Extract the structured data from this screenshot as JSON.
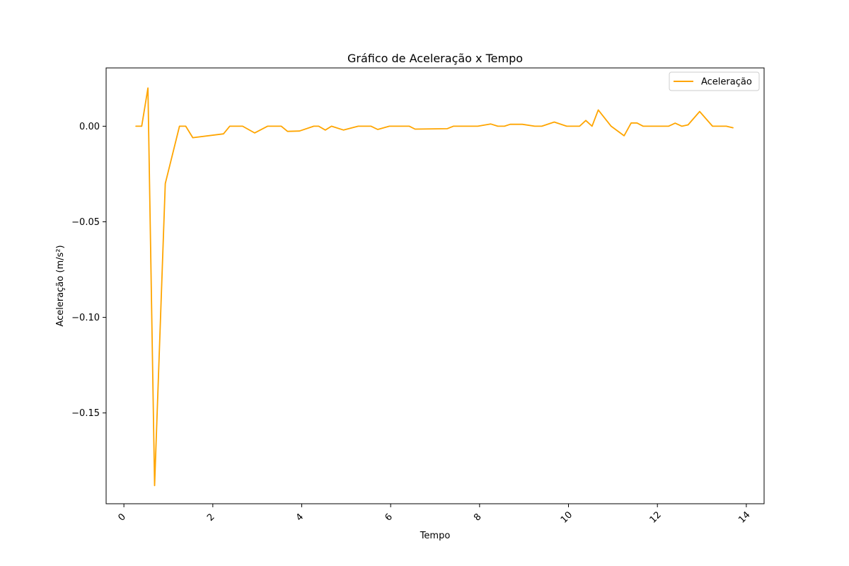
{
  "chart_data": {
    "type": "line",
    "title": "Gráfico de Aceleração x Tempo",
    "xlabel": "Tempo",
    "ylabel": "Aceleração (m/s²)",
    "xlim": [
      -0.4,
      14.4
    ],
    "ylim": [
      -0.1975,
      0.0305
    ],
    "xticks": [
      0,
      2,
      4,
      6,
      8,
      10,
      12,
      14
    ],
    "xtick_labels": [
      "0",
      "2",
      "4",
      "6",
      "8",
      "10",
      "12",
      "14"
    ],
    "xtick_rotation": 45,
    "yticks": [
      0.0,
      -0.05,
      -0.1,
      -0.15
    ],
    "ytick_labels": [
      "0.00",
      "−0.05",
      "−0.10",
      "−0.15"
    ],
    "grid": false,
    "legend_position": "top-right",
    "series": [
      {
        "name": "Aceleração",
        "color": "#FFA500",
        "x": [
          0.27,
          0.4,
          0.54,
          0.69,
          0.93,
          1.25,
          1.39,
          1.55,
          2.24,
          2.38,
          2.53,
          2.67,
          2.94,
          3.23,
          3.39,
          3.54,
          3.68,
          3.95,
          4.27,
          4.38,
          4.53,
          4.67,
          4.94,
          5.27,
          5.43,
          5.56,
          5.71,
          5.97,
          6.13,
          6.26,
          6.42,
          6.55,
          7.27,
          7.41,
          7.55,
          7.68,
          7.96,
          8.25,
          8.41,
          8.56,
          8.69,
          8.84,
          8.96,
          9.24,
          9.4,
          9.68,
          9.96,
          10.25,
          10.39,
          10.53,
          10.67,
          10.96,
          11.25,
          11.41,
          11.54,
          11.68,
          11.83,
          11.97,
          12.11,
          12.25,
          12.4,
          12.55,
          12.69,
          12.95,
          13.24,
          13.4,
          13.55,
          13.7
        ],
        "y": [
          0.0,
          0.0,
          0.02,
          -0.188,
          -0.03,
          0.0,
          0.0,
          -0.006,
          -0.004,
          0.0,
          0.0,
          0.0,
          -0.0035,
          0.0,
          0.0,
          0.0,
          -0.0027,
          -0.0025,
          0.0,
          0.0,
          -0.002,
          0.0,
          -0.002,
          0.0,
          0.0,
          0.0,
          -0.0017,
          0.0,
          0.0,
          0.0,
          0.0,
          -0.0015,
          -0.0013,
          0.0,
          0.0,
          0.0,
          0.0,
          0.0012,
          0.0,
          0.0,
          0.001,
          0.001,
          0.001,
          0.0,
          0.0,
          0.0022,
          0.0,
          0.0,
          0.003,
          0.0,
          0.0085,
          0.0,
          -0.005,
          0.0017,
          0.0017,
          0.0,
          0.0,
          0.0,
          0.0,
          0.0,
          0.0016,
          0.0,
          0.0007,
          0.0077,
          0.0,
          0.0,
          0.0,
          -0.0008
        ]
      }
    ]
  }
}
